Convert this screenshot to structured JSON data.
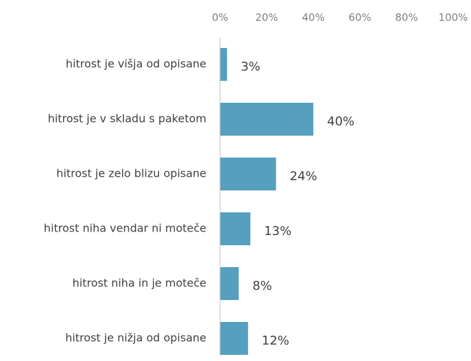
{
  "chart_data": {
    "type": "bar",
    "orientation": "horizontal",
    "categories": [
      "hitrost je višja od opisane",
      "hitrost je v skladu s paketom",
      "hitrost je zelo blizu opisane",
      "hitrost niha vendar ni moteče",
      "hitrost niha in je moteče",
      "hitrost je nižja od opisane"
    ],
    "values": [
      3,
      40,
      24,
      13,
      8,
      12
    ],
    "value_labels": [
      "3%",
      "40%",
      "24%",
      "13%",
      "8%",
      "12%"
    ],
    "color": "#559fbf",
    "xlim": [
      0,
      100
    ],
    "xticks": [
      {
        "value": 0,
        "label": "0%"
      },
      {
        "value": 20,
        "label": "20%"
      },
      {
        "value": 40,
        "label": "40%"
      },
      {
        "value": 60,
        "label": "60%"
      },
      {
        "value": 80,
        "label": "80%"
      },
      {
        "value": 100,
        "label": "100%"
      }
    ],
    "grid": false
  }
}
